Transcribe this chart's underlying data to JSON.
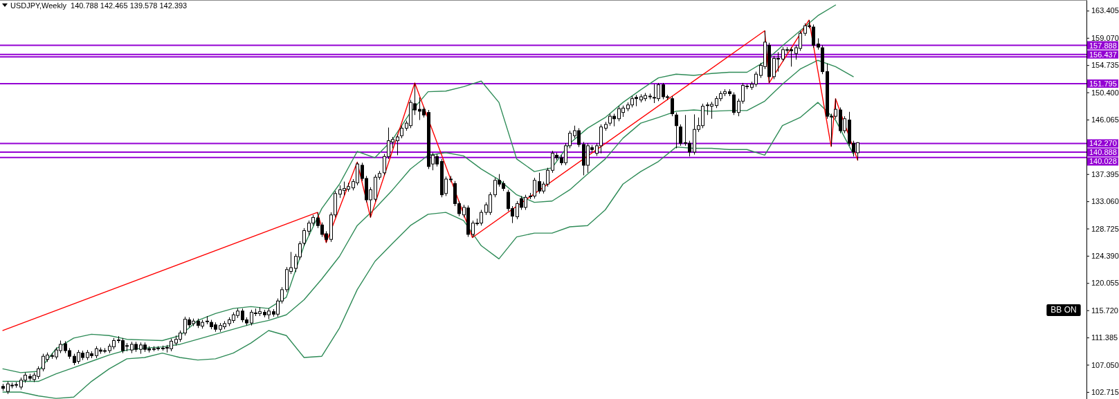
{
  "chart_data": {
    "type": "candlestick",
    "title": "USDJPY,Weekly  140.788 142.465 139.578 142.393",
    "categories": [
      null,
      null,
      null,
      null,
      null,
      null,
      null,
      null,
      null,
      null,
      null,
      null,
      null,
      null,
      null,
      null,
      null,
      null,
      null,
      null,
      null,
      null,
      null,
      null,
      null,
      null,
      null,
      null,
      null,
      null,
      null,
      null,
      null,
      null,
      null,
      null,
      null,
      null,
      null,
      null,
      null,
      null,
      null,
      null,
      null,
      null,
      null,
      null,
      null,
      null,
      null,
      null,
      null,
      null,
      null,
      null,
      null,
      null,
      null,
      null,
      null,
      null,
      null,
      null,
      null,
      null,
      null,
      null,
      null,
      null,
      null,
      null,
      null,
      null,
      null,
      null,
      null,
      null,
      null,
      null,
      null,
      null,
      null,
      null,
      null,
      null,
      null,
      null,
      null,
      null,
      null,
      null,
      null,
      null,
      null,
      null,
      null,
      null,
      null,
      null,
      null,
      null,
      null,
      null,
      null,
      null,
      null,
      null,
      null,
      null,
      null,
      null,
      null,
      null,
      null,
      null,
      null,
      null,
      null,
      null,
      null,
      null,
      null,
      null,
      null,
      null,
      null,
      null,
      null,
      null,
      null,
      null,
      null,
      null,
      null,
      null,
      null,
      null,
      null,
      null,
      null,
      null,
      null,
      null,
      null,
      null,
      null,
      null,
      null,
      null,
      null,
      null,
      null,
      null,
      null,
      null,
      null,
      null,
      null,
      null,
      null,
      null,
      null,
      null,
      null,
      null,
      null,
      null,
      null,
      null,
      null,
      null,
      null,
      null,
      null,
      null,
      null,
      null,
      null,
      null,
      null,
      null,
      null,
      null,
      null,
      null,
      null,
      null,
      null,
      null,
      null,
      null,
      null,
      null,
      null,
      null,
      null,
      null,
      null,
      null,
      null,
      null,
      null,
      null,
      null,
      null,
      null,
      null,
      null,
      null,
      null,
      null,
      null,
      null,
      null,
      null,
      null,
      null,
      null,
      null,
      null,
      null,
      null,
      null,
      null,
      null,
      null,
      null,
      null,
      null,
      null,
      null,
      null,
      null,
      null,
      null,
      null,
      null,
      null,
      null,
      null,
      null,
      null,
      null,
      null
    ],
    "ohlc": [
      [
        103.6,
        104.0,
        102.9,
        103.3
      ],
      [
        102.8,
        104.4,
        102.4,
        104.0
      ],
      [
        103.7,
        104.2,
        103.3,
        103.8
      ],
      [
        103.8,
        104.3,
        103.4,
        103.9
      ],
      [
        103.5,
        105.0,
        103.1,
        104.6
      ],
      [
        104.6,
        105.8,
        104.2,
        105.4
      ],
      [
        105.2,
        105.6,
        104.5,
        104.9
      ],
      [
        104.7,
        105.8,
        104.3,
        105.4
      ],
      [
        105.2,
        106.8,
        104.8,
        106.4
      ],
      [
        106.4,
        108.8,
        106.0,
        108.4
      ],
      [
        107.9,
        109.0,
        107.5,
        108.6
      ],
      [
        108.4,
        108.9,
        108.0,
        108.5
      ],
      [
        108.3,
        109.8,
        107.9,
        109.4
      ],
      [
        109.3,
        110.9,
        108.9,
        110.3
      ],
      [
        110.4,
        110.8,
        108.9,
        109.3
      ],
      [
        109.3,
        109.7,
        108.0,
        108.4
      ],
      [
        108.4,
        108.8,
        107.0,
        107.4
      ],
      [
        107.6,
        109.4,
        107.2,
        109.0
      ],
      [
        108.9,
        109.3,
        107.8,
        108.2
      ],
      [
        108.2,
        109.4,
        107.8,
        109.0
      ],
      [
        108.8,
        109.2,
        108.1,
        108.5
      ],
      [
        108.5,
        110.0,
        108.1,
        109.6
      ],
      [
        109.4,
        109.8,
        108.8,
        109.2
      ],
      [
        109.2,
        109.7,
        108.9,
        109.3
      ],
      [
        109.3,
        110.4,
        108.9,
        110.0
      ],
      [
        109.9,
        111.3,
        109.5,
        110.9
      ],
      [
        110.9,
        111.6,
        110.5,
        111.0
      ],
      [
        110.9,
        111.3,
        108.9,
        109.3
      ],
      [
        110.0,
        110.5,
        109.2,
        110.1
      ],
      [
        109.4,
        110.7,
        108.9,
        110.3
      ],
      [
        110.3,
        110.7,
        109.1,
        109.5
      ],
      [
        109.5,
        110.6,
        108.8,
        110.2
      ],
      [
        110.2,
        110.6,
        109.1,
        109.5
      ],
      [
        109.6,
        110.0,
        109.0,
        109.4
      ],
      [
        109.5,
        110.0,
        109.2,
        109.6
      ],
      [
        109.6,
        110.0,
        109.3,
        109.7
      ],
      [
        109.7,
        110.1,
        109.3,
        109.7
      ],
      [
        109.7,
        110.2,
        109.0,
        109.8
      ],
      [
        109.6,
        111.2,
        109.2,
        110.8
      ],
      [
        110.5,
        111.7,
        110.1,
        111.1
      ],
      [
        111.1,
        112.5,
        110.7,
        112.1
      ],
      [
        112.1,
        114.7,
        111.7,
        114.3
      ],
      [
        114.2,
        114.6,
        113.0,
        113.4
      ],
      [
        113.6,
        114.4,
        113.2,
        114.0
      ],
      [
        114.0,
        114.4,
        112.9,
        113.3
      ],
      [
        113.2,
        114.2,
        112.8,
        113.8
      ],
      [
        113.9,
        114.8,
        113.5,
        114.0
      ],
      [
        113.8,
        114.2,
        112.7,
        113.1
      ],
      [
        113.4,
        113.8,
        112.3,
        112.7
      ],
      [
        112.7,
        113.7,
        112.3,
        113.3
      ],
      [
        113.1,
        114.0,
        112.7,
        113.6
      ],
      [
        113.6,
        114.6,
        113.2,
        114.2
      ],
      [
        114.1,
        115.4,
        113.7,
        115.0
      ],
      [
        114.9,
        116.0,
        114.5,
        115.6
      ],
      [
        115.6,
        116.0,
        113.8,
        114.2
      ],
      [
        114.2,
        114.6,
        113.3,
        113.7
      ],
      [
        113.7,
        115.8,
        113.3,
        115.4
      ],
      [
        115.2,
        116.0,
        114.8,
        115.3
      ],
      [
        115.2,
        116.2,
        114.8,
        115.5
      ],
      [
        115.4,
        115.8,
        114.6,
        115.0
      ],
      [
        115.0,
        116.0,
        114.3,
        115.6
      ],
      [
        115.5,
        115.9,
        114.7,
        115.1
      ],
      [
        115.1,
        117.6,
        114.7,
        117.2
      ],
      [
        117.2,
        119.4,
        116.8,
        119.0
      ],
      [
        119.0,
        122.6,
        118.6,
        122.2
      ],
      [
        121.9,
        125.0,
        121.5,
        122.5
      ],
      [
        122.4,
        124.7,
        121.8,
        124.3
      ],
      [
        124.2,
        126.7,
        123.8,
        126.3
      ],
      [
        126.4,
        128.8,
        126.0,
        128.4
      ],
      [
        128.3,
        130.0,
        127.6,
        129.6
      ],
      [
        129.6,
        130.9,
        129.2,
        130.5
      ],
      [
        130.4,
        131.3,
        128.8,
        129.2
      ],
      [
        129.3,
        129.7,
        127.4,
        127.8
      ],
      [
        127.9,
        128.3,
        126.5,
        127.0
      ],
      [
        127.0,
        131.3,
        126.6,
        130.9
      ],
      [
        130.9,
        134.7,
        130.5,
        134.3
      ],
      [
        134.2,
        135.6,
        133.6,
        134.9
      ],
      [
        134.8,
        136.2,
        134.0,
        135.1
      ],
      [
        135.0,
        136.0,
        134.6,
        135.4
      ],
      [
        135.2,
        136.6,
        134.8,
        136.2
      ],
      [
        136.0,
        139.3,
        135.6,
        139.0
      ],
      [
        138.8,
        139.2,
        136.3,
        136.7
      ],
      [
        136.7,
        137.1,
        132.9,
        133.3
      ],
      [
        133.3,
        135.3,
        130.5,
        134.9
      ],
      [
        133.4,
        137.3,
        133.0,
        136.9
      ],
      [
        136.9,
        137.9,
        136.5,
        137.5
      ],
      [
        137.6,
        140.6,
        137.2,
        140.2
      ],
      [
        140.2,
        144.8,
        139.8,
        142.7
      ],
      [
        142.5,
        143.3,
        141.5,
        142.9
      ],
      [
        142.7,
        143.7,
        140.4,
        143.3
      ],
      [
        143.5,
        145.1,
        143.1,
        144.7
      ],
      [
        144.7,
        145.9,
        144.3,
        145.5
      ],
      [
        145.1,
        149.2,
        144.7,
        148.8
      ],
      [
        148.6,
        151.9,
        146.8,
        147.6
      ],
      [
        147.7,
        149.6,
        146.0,
        147.4
      ],
      [
        147.7,
        148.1,
        146.4,
        146.8
      ],
      [
        147.2,
        147.6,
        138.2,
        138.6
      ],
      [
        139.0,
        140.8,
        138.0,
        140.4
      ],
      [
        140.2,
        140.6,
        138.6,
        139.0
      ],
      [
        139.4,
        139.8,
        133.7,
        134.1
      ],
      [
        134.3,
        137.0,
        133.9,
        136.6
      ],
      [
        136.5,
        137.1,
        136.1,
        136.6
      ],
      [
        135.9,
        136.3,
        132.3,
        132.7
      ],
      [
        132.7,
        133.1,
        130.7,
        131.1
      ],
      [
        130.9,
        132.5,
        130.5,
        132.1
      ],
      [
        132.0,
        132.4,
        127.4,
        127.8
      ],
      [
        127.8,
        130.0,
        127.3,
        129.6
      ],
      [
        129.5,
        130.3,
        129.2,
        129.6
      ],
      [
        129.6,
        131.7,
        129.2,
        131.3
      ],
      [
        131.3,
        132.9,
        130.9,
        132.5
      ],
      [
        131.3,
        134.5,
        130.9,
        134.1
      ],
      [
        134.1,
        136.8,
        133.7,
        136.4
      ],
      [
        136.4,
        137.4,
        135.4,
        135.8
      ],
      [
        135.9,
        136.3,
        134.7,
        135.1
      ],
      [
        134.5,
        134.9,
        131.5,
        131.9
      ],
      [
        131.9,
        132.3,
        129.6,
        130.7
      ],
      [
        130.6,
        133.1,
        130.2,
        132.7
      ],
      [
        133.5,
        133.9,
        131.7,
        132.1
      ],
      [
        132.1,
        134.1,
        131.7,
        133.7
      ],
      [
        133.8,
        134.4,
        133.4,
        133.9
      ],
      [
        133.9,
        136.8,
        133.5,
        136.4
      ],
      [
        136.2,
        137.6,
        134.3,
        134.7
      ],
      [
        134.7,
        136.2,
        134.3,
        135.8
      ],
      [
        135.8,
        138.4,
        135.4,
        138.0
      ],
      [
        138.0,
        141.1,
        137.6,
        140.7
      ],
      [
        140.4,
        140.8,
        139.6,
        140.0
      ],
      [
        140.0,
        140.4,
        138.8,
        139.2
      ],
      [
        139.2,
        142.3,
        138.8,
        141.9
      ],
      [
        141.9,
        144.3,
        141.5,
        143.9
      ],
      [
        143.5,
        145.1,
        143.1,
        144.3
      ],
      [
        144.3,
        144.7,
        141.7,
        142.1
      ],
      [
        142.1,
        142.5,
        137.2,
        138.8
      ],
      [
        138.8,
        142.3,
        137.6,
        141.9
      ],
      [
        141.6,
        142.0,
        140.9,
        141.3
      ],
      [
        140.7,
        142.3,
        140.3,
        141.9
      ],
      [
        141.9,
        145.3,
        140.7,
        144.9
      ],
      [
        144.7,
        145.7,
        144.3,
        145.3
      ],
      [
        145.5,
        147.0,
        145.1,
        146.6
      ],
      [
        146.6,
        147.0,
        145.0,
        146.2
      ],
      [
        146.2,
        148.2,
        145.8,
        147.8
      ],
      [
        147.2,
        148.3,
        146.5,
        147.9
      ],
      [
        147.8,
        148.8,
        147.4,
        148.4
      ],
      [
        148.4,
        149.8,
        148.0,
        149.4
      ],
      [
        149.6,
        150.0,
        148.2,
        149.4
      ],
      [
        149.2,
        150.1,
        148.8,
        149.7
      ],
      [
        149.4,
        150.3,
        149.0,
        149.9
      ],
      [
        149.8,
        150.2,
        149.3,
        149.7
      ],
      [
        149.5,
        151.7,
        148.7,
        149.6
      ],
      [
        149.4,
        151.9,
        149.0,
        151.6
      ],
      [
        151.6,
        151.9,
        149.3,
        149.7
      ],
      [
        149.6,
        150.0,
        149.2,
        149.7
      ],
      [
        149.4,
        149.8,
        146.6,
        147.0
      ],
      [
        146.8,
        147.2,
        141.5,
        145.1
      ],
      [
        144.9,
        145.3,
        141.9,
        142.3
      ],
      [
        142.3,
        146.8,
        141.9,
        142.4
      ],
      [
        142.3,
        142.7,
        140.2,
        140.9
      ],
      [
        140.9,
        146.9,
        140.5,
        144.5
      ],
      [
        144.5,
        146.4,
        144.1,
        145.1
      ],
      [
        145.1,
        148.6,
        144.7,
        148.2
      ],
      [
        148.3,
        148.8,
        146.8,
        148.4
      ],
      [
        148.2,
        148.9,
        146.2,
        148.5
      ],
      [
        148.3,
        149.8,
        147.9,
        149.4
      ],
      [
        149.4,
        150.6,
        149.0,
        150.2
      ],
      [
        150.2,
        150.9,
        149.8,
        150.5
      ],
      [
        150.5,
        150.9,
        149.8,
        150.2
      ],
      [
        150.0,
        150.4,
        146.8,
        147.2
      ],
      [
        147.2,
        149.4,
        146.6,
        149.0
      ],
      [
        149.0,
        151.9,
        148.6,
        151.5
      ],
      [
        151.4,
        151.7,
        150.9,
        151.3
      ],
      [
        151.2,
        152.1,
        150.8,
        151.7
      ],
      [
        151.7,
        153.7,
        151.3,
        153.3
      ],
      [
        153.1,
        155.1,
        152.7,
        154.7
      ],
      [
        154.5,
        160.2,
        154.1,
        158.4
      ],
      [
        157.9,
        158.3,
        151.9,
        152.9
      ],
      [
        152.9,
        156.2,
        152.5,
        155.8
      ],
      [
        155.7,
        156.8,
        153.7,
        155.8
      ],
      [
        155.7,
        157.6,
        155.3,
        157.2
      ],
      [
        157.1,
        157.6,
        156.7,
        157.2
      ],
      [
        157.2,
        157.6,
        154.5,
        157.0
      ],
      [
        156.6,
        157.9,
        155.6,
        157.5
      ],
      [
        157.4,
        160.2,
        157.0,
        159.8
      ],
      [
        159.8,
        161.4,
        159.4,
        161.0
      ],
      [
        161.0,
        161.9,
        160.6,
        160.9
      ],
      [
        160.8,
        161.2,
        157.5,
        157.9
      ],
      [
        158.1,
        159.0,
        157.2,
        157.6
      ],
      [
        157.5,
        157.9,
        153.3,
        153.7
      ],
      [
        153.7,
        155.0,
        146.2,
        146.6
      ],
      [
        146.6,
        147.0,
        141.8,
        146.5
      ],
      [
        146.6,
        149.4,
        146.2,
        147.7
      ],
      [
        147.6,
        148.0,
        143.9,
        144.3
      ],
      [
        144.3,
        146.6,
        143.9,
        146.2
      ],
      [
        146.0,
        147.3,
        141.9,
        142.3
      ],
      [
        142.3,
        142.7,
        140.2,
        140.9
      ],
      [
        140.788,
        142.465,
        139.578,
        142.393
      ],
      null,
      null,
      null,
      null,
      null,
      null,
      null,
      null,
      null,
      null,
      null,
      null,
      null,
      null,
      null,
      null,
      null,
      null,
      null,
      null,
      null,
      null,
      null,
      null,
      null,
      null,
      null,
      null,
      null,
      null,
      null,
      null,
      null,
      null,
      null,
      null,
      null,
      null,
      null,
      null,
      null,
      null,
      null,
      null,
      null,
      null,
      null,
      null,
      null,
      null,
      null
    ],
    "series": [
      {
        "type": "line",
        "color": "#2e8b57",
        "values": [
          106.4,
          null,
          null,
          null,
          105.8,
          null,
          null,
          null,
          106.0,
          null,
          null,
          null,
          109.6,
          null,
          null,
          null,
          111.3,
          null,
          null,
          null,
          111.9,
          null,
          null,
          null,
          111.7,
          null,
          null,
          null,
          111.1,
          null,
          null,
          null,
          111.0,
          null,
          null,
          null,
          110.9,
          null,
          null,
          null,
          111.7,
          null,
          null,
          null,
          114.1,
          null,
          null,
          null,
          115.2,
          null,
          null,
          null,
          116.0,
          null,
          null,
          null,
          116.3,
          null,
          null,
          null,
          116.0,
          null,
          null,
          null,
          117.8,
          null,
          null,
          null,
          126.0,
          null,
          null,
          null,
          131.9,
          null,
          null,
          null,
          135.8,
          null,
          null,
          null,
          141.0,
          null,
          null,
          null,
          140.0,
          null,
          null,
          null,
          142.9,
          null,
          null,
          null,
          147.2,
          null,
          null,
          null,
          150.5,
          null,
          null,
          null,
          150.6,
          null,
          null,
          null,
          151.3,
          null,
          null,
          null,
          152.2,
          null,
          null,
          null,
          148.8,
          null,
          null,
          null,
          139.8,
          null,
          null,
          null,
          137.8,
          null,
          null,
          null,
          138.4,
          null,
          null,
          null,
          142.3,
          null,
          null,
          null,
          144.7,
          null,
          null,
          null,
          146.4,
          null,
          null,
          null,
          148.8,
          null,
          null,
          null,
          150.8,
          null,
          null,
          null,
          152.7,
          null,
          null,
          null,
          153.3,
          null,
          null,
          null,
          153.1,
          null,
          null,
          null,
          153.4,
          null,
          null,
          null,
          153.6,
          null,
          null,
          null,
          153.6,
          null,
          null,
          null,
          155.3,
          null,
          null,
          null,
          157.8,
          null,
          null,
          null,
          160.2,
          null,
          null,
          null,
          162.6,
          null,
          null,
          null,
          164.3,
          null,
          null,
          null,
          null,
          null,
          null,
          null,
          null,
          null,
          null,
          null,
          null,
          null,
          null,
          null,
          null,
          null,
          null,
          null,
          null,
          null,
          null,
          null,
          null,
          null,
          null,
          null,
          null,
          null,
          null,
          null,
          null,
          null,
          null,
          null,
          null,
          null,
          null,
          null,
          null,
          null,
          null,
          null,
          null,
          null,
          null,
          null,
          null,
          null,
          null,
          null,
          null,
          null,
          null,
          null,
          null
        ]
      },
      {
        "type": "line",
        "color": "#2e8b57",
        "values": [
          104.4,
          null,
          null,
          null,
          104.4,
          null,
          null,
          null,
          104.4,
          null,
          null,
          null,
          105.6,
          null,
          null,
          null,
          106.6,
          null,
          null,
          null,
          107.6,
          null,
          null,
          null,
          108.6,
          null,
          null,
          null,
          109.4,
          null,
          null,
          null,
          109.7,
          null,
          null,
          null,
          109.9,
          null,
          null,
          null,
          110.3,
          null,
          null,
          null,
          111.1,
          null,
          null,
          null,
          111.9,
          null,
          null,
          null,
          112.7,
          null,
          null,
          null,
          113.5,
          null,
          null,
          null,
          114.1,
          null,
          null,
          null,
          115.0,
          null,
          null,
          null,
          117.4,
          null,
          null,
          null,
          120.7,
          null,
          null,
          null,
          124.3,
          null,
          null,
          null,
          129.2,
          null,
          null,
          null,
          131.9,
          null,
          null,
          null,
          134.9,
          null,
          null,
          null,
          138.2,
          null,
          null,
          null,
          140.4,
          null,
          null,
          null,
          140.8,
          null,
          null,
          null,
          140.3,
          null,
          null,
          null,
          138.2,
          null,
          null,
          null,
          136.5,
          null,
          null,
          null,
          134.1,
          null,
          null,
          null,
          132.9,
          null,
          null,
          null,
          133.1,
          null,
          null,
          null,
          134.9,
          null,
          null,
          null,
          137.4,
          null,
          null,
          null,
          139.8,
          null,
          null,
          null,
          143.1,
          null,
          null,
          null,
          145.5,
          null,
          null,
          null,
          146.4,
          null,
          null,
          null,
          147.4,
          null,
          null,
          null,
          147.6,
          null,
          null,
          null,
          147.4,
          null,
          null,
          null,
          147.5,
          null,
          null,
          null,
          147.5,
          null,
          null,
          null,
          149.0,
          null,
          null,
          null,
          151.7,
          null,
          null,
          null,
          154.1,
          null,
          null,
          null,
          155.5,
          null,
          null,
          null,
          154.5,
          null,
          null,
          null,
          152.9,
          null,
          null,
          null,
          null,
          null,
          null,
          null,
          null,
          null,
          null,
          null,
          null,
          null,
          null,
          null,
          null,
          null,
          null,
          null,
          null,
          null,
          null,
          null,
          null,
          null,
          null,
          null,
          null,
          null,
          null,
          null,
          null,
          null,
          null,
          null,
          null,
          null,
          null,
          null,
          null,
          null,
          null,
          null,
          null,
          null,
          null,
          null,
          null,
          null,
          null,
          null,
          null
        ]
      },
      {
        "type": "line",
        "color": "#2e8b57",
        "values": [
          102.7,
          null,
          null,
          null,
          102.7,
          null,
          null,
          null,
          102.1,
          null,
          null,
          null,
          101.7,
          null,
          null,
          null,
          101.9,
          null,
          null,
          null,
          104.4,
          null,
          null,
          null,
          106.4,
          null,
          null,
          null,
          108.0,
          null,
          null,
          null,
          108.2,
          null,
          null,
          null,
          108.9,
          null,
          null,
          null,
          108.2,
          null,
          null,
          null,
          107.8,
          null,
          null,
          null,
          108.0,
          null,
          null,
          null,
          108.9,
          null,
          null,
          null,
          110.5,
          null,
          null,
          null,
          112.5,
          null,
          null,
          null,
          111.7,
          null,
          null,
          null,
          108.2,
          null,
          null,
          null,
          108.4,
          null,
          null,
          null,
          112.9,
          null,
          null,
          null,
          119.0,
          null,
          null,
          null,
          123.5,
          null,
          null,
          null,
          126.4,
          null,
          null,
          null,
          129.2,
          null,
          null,
          null,
          131.0,
          null,
          null,
          null,
          131.3,
          null,
          null,
          null,
          130.0,
          null,
          null,
          null,
          126.0,
          null,
          null,
          null,
          123.9,
          null,
          null,
          null,
          127.4,
          null,
          null,
          null,
          128.0,
          null,
          null,
          null,
          128.0,
          null,
          null,
          null,
          129.0,
          null,
          null,
          null,
          129.2,
          null,
          null,
          null,
          131.7,
          null,
          null,
          null,
          135.8,
          null,
          null,
          null,
          137.8,
          null,
          null,
          null,
          139.4,
          null,
          null,
          null,
          141.7,
          null,
          null,
          null,
          141.5,
          null,
          null,
          null,
          141.5,
          null,
          null,
          null,
          141.3,
          null,
          null,
          null,
          141.3,
          null,
          null,
          null,
          140.4,
          null,
          null,
          null,
          145.1,
          null,
          null,
          null,
          146.4,
          null,
          null,
          null,
          148.8,
          null,
          null,
          null,
          146.0,
          null,
          null,
          null,
          140.6,
          null,
          null,
          null,
          null,
          null,
          null,
          null,
          null,
          null,
          null,
          null,
          null,
          null,
          null,
          null,
          null,
          null,
          null,
          null,
          null,
          null,
          null,
          null,
          null,
          null,
          null,
          null,
          null,
          null,
          null,
          null,
          null,
          null,
          null,
          null,
          null,
          null,
          null,
          null,
          null,
          null,
          null,
          null,
          null,
          null,
          null,
          null,
          null,
          null,
          null,
          null,
          null
        ]
      },
      {
        "type": "line",
        "color": "#ff0000",
        "values": [
          112.5,
          null,
          null,
          null,
          null,
          null,
          null,
          null,
          null,
          null,
          null,
          null,
          null,
          null,
          null,
          null,
          null,
          null,
          null,
          null,
          null,
          null,
          null,
          null,
          null,
          null,
          null,
          null,
          null,
          null,
          null,
          null,
          null,
          null,
          null,
          null,
          null,
          null,
          null,
          null,
          null,
          null,
          null,
          null,
          null,
          null,
          null,
          null,
          null,
          null,
          null,
          null,
          null,
          null,
          null,
          null,
          null,
          null,
          null,
          null,
          null,
          null,
          null,
          null,
          null,
          null,
          null,
          null,
          null,
          null,
          null,
          131.3,
          null,
          126.5,
          null,
          null,
          null,
          null,
          null,
          null,
          139.3,
          null,
          null,
          130.5,
          null,
          null,
          null,
          null,
          null,
          null,
          null,
          null,
          null,
          151.9,
          null,
          null,
          null,
          null,
          null,
          null,
          null,
          null,
          null,
          null,
          null,
          null,
          127.3,
          null,
          null,
          null,
          null,
          null,
          null,
          null,
          null,
          null,
          null,
          null,
          null,
          null,
          null,
          null,
          null,
          null,
          null,
          null,
          null,
          null,
          null,
          null,
          null,
          null,
          null,
          null,
          null,
          null,
          null,
          null,
          null,
          null,
          null,
          null,
          null,
          null,
          null,
          null,
          null,
          null,
          null,
          null,
          null,
          null,
          null,
          null,
          null,
          null,
          null,
          null,
          null,
          null,
          null,
          null,
          null,
          null,
          null,
          null,
          null,
          null,
          null,
          null,
          null,
          null,
          160.2,
          151.9,
          null,
          null,
          null,
          null,
          null,
          null,
          null,
          null,
          161.9,
          null,
          null,
          null,
          null,
          141.8,
          149.4,
          null,
          null,
          null,
          null,
          139.6,
          null,
          null,
          null,
          null,
          null,
          null,
          null,
          null,
          null,
          null,
          null,
          null,
          null,
          null,
          null,
          null,
          null,
          null,
          null,
          null,
          null,
          null,
          null,
          null,
          null,
          null,
          null,
          null,
          null,
          null,
          null,
          null,
          null,
          null,
          null,
          null,
          null,
          null,
          null,
          null,
          null,
          null,
          null,
          null,
          null,
          null,
          null,
          null,
          null,
          null,
          null
        ]
      }
    ],
    "ref_lines": [
      {
        "axis": "y",
        "value": 157.888,
        "label": "157.888",
        "color": "#9400d3"
      },
      {
        "axis": "y",
        "value": 156.437,
        "label": "156.437",
        "color": "#9400d3"
      },
      {
        "axis": "y",
        "value": 156.05,
        "color": "#9400d3"
      },
      {
        "axis": "y",
        "value": 151.795,
        "label": "151.795",
        "color": "#9400d3"
      },
      {
        "axis": "y",
        "value": 142.27,
        "label": "142.270",
        "color": "#9400d3"
      },
      {
        "axis": "y",
        "value": 140.888,
        "label": "140.888",
        "color": "#9400d3"
      },
      {
        "axis": "y",
        "value": 140.028,
        "label": "140.028",
        "color": "#9400d3"
      }
    ],
    "annotations": [
      "BB ON"
    ],
    "ylim": [
      101.6,
      165.1
    ],
    "yticks": [
      163.405,
      {
        "value": 159.07,
        "label": "159.070"
      },
      154.735,
      {
        "value": 150.4,
        "label": "150.400"
      },
      146.065,
      137.395,
      {
        "value": 133.06,
        "label": "133.060"
      },
      128.725,
      {
        "value": 124.39,
        "label": "124.390"
      },
      120.055,
      {
        "value": 115.72,
        "label": "115.720"
      },
      111.385,
      {
        "value": 107.05,
        "label": "107.050"
      },
      102.715
    ],
    "tick_labels": "y"
  }
}
